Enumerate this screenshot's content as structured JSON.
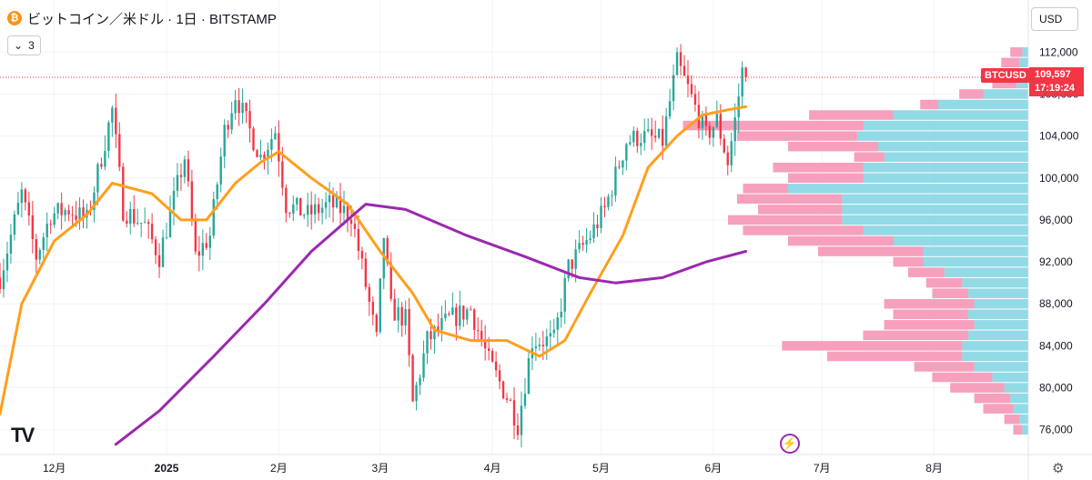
{
  "header": {
    "coin_glyph": "₿",
    "title": "ビットコイン／米ドル · 1日 · BITSTAMP",
    "indicator_count": "3",
    "currency": "USD"
  },
  "symbol_tag": "BTCUSD",
  "last_price": "109,597",
  "countdown": "17:19:24",
  "colors": {
    "up": "#26a69a",
    "down": "#f23645",
    "ma_fast": "#ff9f1c",
    "ma_slow": "#9c27b0",
    "vp_up": "#7fd3e0",
    "vp_down": "#f48fb1"
  },
  "chart_data": {
    "type": "candlestick",
    "y_axis": {
      "ticks": [
        76000,
        80000,
        84000,
        88000,
        92000,
        96000,
        100000,
        104000,
        108000,
        112000
      ],
      "range": [
        74500,
        113500
      ]
    },
    "x_axis": {
      "ticks": [
        "12月",
        "2025",
        "2月",
        "3月",
        "4月",
        "5月",
        "6月",
        "7月",
        "8月"
      ],
      "range": [
        "2024-11-16",
        "2025-08-27"
      ]
    },
    "last_price": 109597,
    "close_path": [
      [
        "2024-11-16",
        90500
      ],
      [
        "2024-11-22",
        98500
      ],
      [
        "2024-11-26",
        92500
      ],
      [
        "2024-11-30",
        96500
      ],
      [
        "2024-12-05",
        97000
      ],
      [
        "2024-12-10",
        96000
      ],
      [
        "2024-12-17",
        106500
      ],
      [
        "2024-12-20",
        97000
      ],
      [
        "2024-12-26",
        95500
      ],
      [
        "2024-12-30",
        92500
      ],
      [
        "2025-01-06",
        102000
      ],
      [
        "2025-01-09",
        92500
      ],
      [
        "2025-01-13",
        94500
      ],
      [
        "2025-01-17",
        104500
      ],
      [
        "2025-01-20",
        108000
      ],
      [
        "2025-01-24",
        104500
      ],
      [
        "2025-01-27",
        102000
      ],
      [
        "2025-01-31",
        104500
      ],
      [
        "2025-02-03",
        97500
      ],
      [
        "2025-02-09",
        96500
      ],
      [
        "2025-02-15",
        97500
      ],
      [
        "2025-02-21",
        96500
      ],
      [
        "2025-02-24",
        91500
      ],
      [
        "2025-02-28",
        84500
      ],
      [
        "2025-03-02",
        94500
      ],
      [
        "2025-03-04",
        87500
      ],
      [
        "2025-03-08",
        86500
      ],
      [
        "2025-03-10",
        78500
      ],
      [
        "2025-03-14",
        84500
      ],
      [
        "2025-03-20",
        86500
      ],
      [
        "2025-03-26",
        87500
      ],
      [
        "2025-03-31",
        82500
      ],
      [
        "2025-04-06",
        78500
      ],
      [
        "2025-04-08",
        76500
      ],
      [
        "2025-04-12",
        84500
      ],
      [
        "2025-04-18",
        84500
      ],
      [
        "2025-04-22",
        91500
      ],
      [
        "2025-04-28",
        94500
      ],
      [
        "2025-05-02",
        97000
      ],
      [
        "2025-05-08",
        103500
      ],
      [
        "2025-05-12",
        104000
      ],
      [
        "2025-05-18",
        103500
      ],
      [
        "2025-05-22",
        111000
      ],
      [
        "2025-05-25",
        108500
      ],
      [
        "2025-05-30",
        104000
      ],
      [
        "2025-06-02",
        105500
      ],
      [
        "2025-06-05",
        101500
      ],
      [
        "2025-06-07",
        105500
      ],
      [
        "2025-06-09",
        110200
      ],
      [
        "2025-06-10",
        109597
      ]
    ],
    "series": [
      {
        "name": "",
        "type": "moving-average",
        "color": "#ff9f1c",
        "points": [
          [
            "2024-11-16",
            77500
          ],
          [
            "2024-11-22",
            88000
          ],
          [
            "2024-12-01",
            94000
          ],
          [
            "2024-12-10",
            96500
          ],
          [
            "2024-12-17",
            99500
          ],
          [
            "2024-12-28",
            98500
          ],
          [
            "2025-01-05",
            96000
          ],
          [
            "2025-01-12",
            96000
          ],
          [
            "2025-01-20",
            99500
          ],
          [
            "2025-01-27",
            101500
          ],
          [
            "2025-02-01",
            102500
          ],
          [
            "2025-02-10",
            100000
          ],
          [
            "2025-02-20",
            97500
          ],
          [
            "2025-03-01",
            93000
          ],
          [
            "2025-03-10",
            89000
          ],
          [
            "2025-03-16",
            85500
          ],
          [
            "2025-03-26",
            84500
          ],
          [
            "2025-04-05",
            84500
          ],
          [
            "2025-04-14",
            83000
          ],
          [
            "2025-04-21",
            84500
          ],
          [
            "2025-04-28",
            89000
          ],
          [
            "2025-05-07",
            94500
          ],
          [
            "2025-05-14",
            101000
          ],
          [
            "2025-05-22",
            104000
          ],
          [
            "2025-05-29",
            106000
          ],
          [
            "2025-06-05",
            106500
          ],
          [
            "2025-06-10",
            106800
          ]
        ]
      },
      {
        "name": "",
        "type": "moving-average",
        "color": "#9c27b0",
        "points": [
          [
            "2024-12-18",
            74600
          ],
          [
            "2024-12-30",
            77800
          ],
          [
            "2025-01-14",
            83000
          ],
          [
            "2025-01-28",
            88000
          ],
          [
            "2025-02-10",
            93000
          ],
          [
            "2025-02-25",
            97500
          ],
          [
            "2025-03-08",
            97000
          ],
          [
            "2025-03-25",
            94500
          ],
          [
            "2025-04-10",
            92500
          ],
          [
            "2025-04-25",
            90500
          ],
          [
            "2025-05-05",
            90000
          ],
          [
            "2025-05-18",
            90500
          ],
          [
            "2025-05-30",
            92000
          ],
          [
            "2025-06-10",
            93000
          ]
        ]
      }
    ],
    "volume_profile": [
      {
        "price": 112000,
        "up": 0.02,
        "down": 0.04
      },
      {
        "price": 111000,
        "up": 0.03,
        "down": 0.06
      },
      {
        "price": 110000,
        "up": 0.03,
        "down": 0.07
      },
      {
        "price": 109000,
        "up": 0.04,
        "down": 0.08
      },
      {
        "price": 108000,
        "up": 0.15,
        "down": 0.08
      },
      {
        "price": 107000,
        "up": 0.3,
        "down": 0.06
      },
      {
        "price": 106000,
        "up": 0.45,
        "down": 0.28
      },
      {
        "price": 105000,
        "up": 0.55,
        "down": 0.6
      },
      {
        "price": 104000,
        "up": 0.57,
        "down": 0.4
      },
      {
        "price": 103000,
        "up": 0.5,
        "down": 0.3
      },
      {
        "price": 102000,
        "up": 0.48,
        "down": 0.1
      },
      {
        "price": 101000,
        "up": 0.55,
        "down": 0.3
      },
      {
        "price": 100000,
        "up": 0.55,
        "down": 0.25
      },
      {
        "price": 99000,
        "up": 0.8,
        "down": 0.15
      },
      {
        "price": 98000,
        "up": 0.62,
        "down": 0.35
      },
      {
        "price": 97000,
        "up": 0.62,
        "down": 0.28
      },
      {
        "price": 96000,
        "up": 0.62,
        "down": 0.38
      },
      {
        "price": 95000,
        "up": 0.55,
        "down": 0.4
      },
      {
        "price": 94000,
        "up": 0.45,
        "down": 0.35
      },
      {
        "price": 93000,
        "up": 0.35,
        "down": 0.35
      },
      {
        "price": 92000,
        "up": 0.35,
        "down": 0.1
      },
      {
        "price": 91000,
        "up": 0.28,
        "down": 0.12
      },
      {
        "price": 90000,
        "up": 0.22,
        "down": 0.12
      },
      {
        "price": 89000,
        "up": 0.2,
        "down": 0.12
      },
      {
        "price": 88000,
        "up": 0.18,
        "down": 0.3
      },
      {
        "price": 87000,
        "up": 0.2,
        "down": 0.25
      },
      {
        "price": 86000,
        "up": 0.18,
        "down": 0.3
      },
      {
        "price": 85000,
        "up": 0.2,
        "down": 0.35
      },
      {
        "price": 84000,
        "up": 0.22,
        "down": 0.6
      },
      {
        "price": 83000,
        "up": 0.22,
        "down": 0.45
      },
      {
        "price": 82000,
        "up": 0.18,
        "down": 0.2
      },
      {
        "price": 81000,
        "up": 0.12,
        "down": 0.2
      },
      {
        "price": 80000,
        "up": 0.08,
        "down": 0.18
      },
      {
        "price": 79000,
        "up": 0.06,
        "down": 0.12
      },
      {
        "price": 78000,
        "up": 0.05,
        "down": 0.1
      },
      {
        "price": 77000,
        "up": 0.03,
        "down": 0.05
      },
      {
        "price": 76000,
        "up": 0.02,
        "down": 0.03
      }
    ]
  }
}
